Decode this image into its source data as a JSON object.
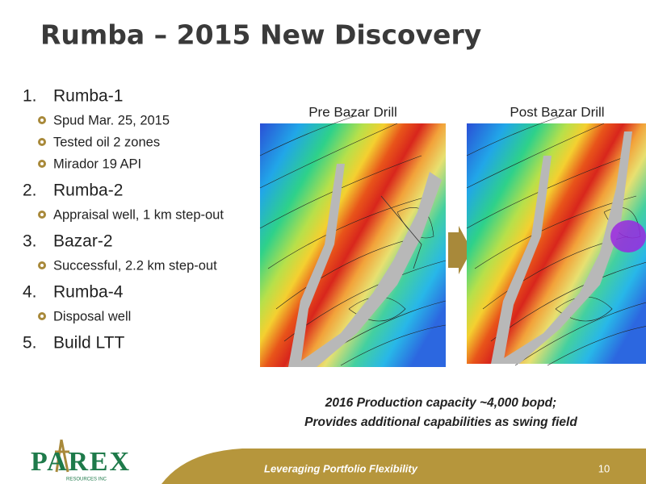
{
  "title": "Rumba – 2015 New Discovery",
  "list": [
    {
      "number": "1.",
      "text": "Rumba-1",
      "bullets": [
        "Spud Mar. 25, 2015",
        "Tested oil 2 zones",
        "Mirador 19 API"
      ]
    },
    {
      "number": "2.",
      "text": "Rumba-2",
      "bullets": [
        "Appraisal well, 1 km step-out"
      ]
    },
    {
      "number": "3.",
      "text": "Bazar-2",
      "bullets": [
        "Successful, 2.2 km step-out"
      ]
    },
    {
      "number": "4.",
      "text": "Rumba-4",
      "bullets": [
        "Disposal well"
      ]
    },
    {
      "number": "5.",
      "text": "Build LTT",
      "bullets": []
    }
  ],
  "maps": [
    {
      "label": "Pre Bazar Drill"
    },
    {
      "label": "Post Bazar Drill"
    }
  ],
  "caption": [
    "2016 Production capacity  ~4,000 bopd;",
    "Provides additional capabilities as swing field"
  ],
  "logo": {
    "name": "PAREX",
    "tagline": "RESOURCES INC"
  },
  "footer": {
    "text": "Leveraging Portfolio Flexibility",
    "page": "10"
  }
}
